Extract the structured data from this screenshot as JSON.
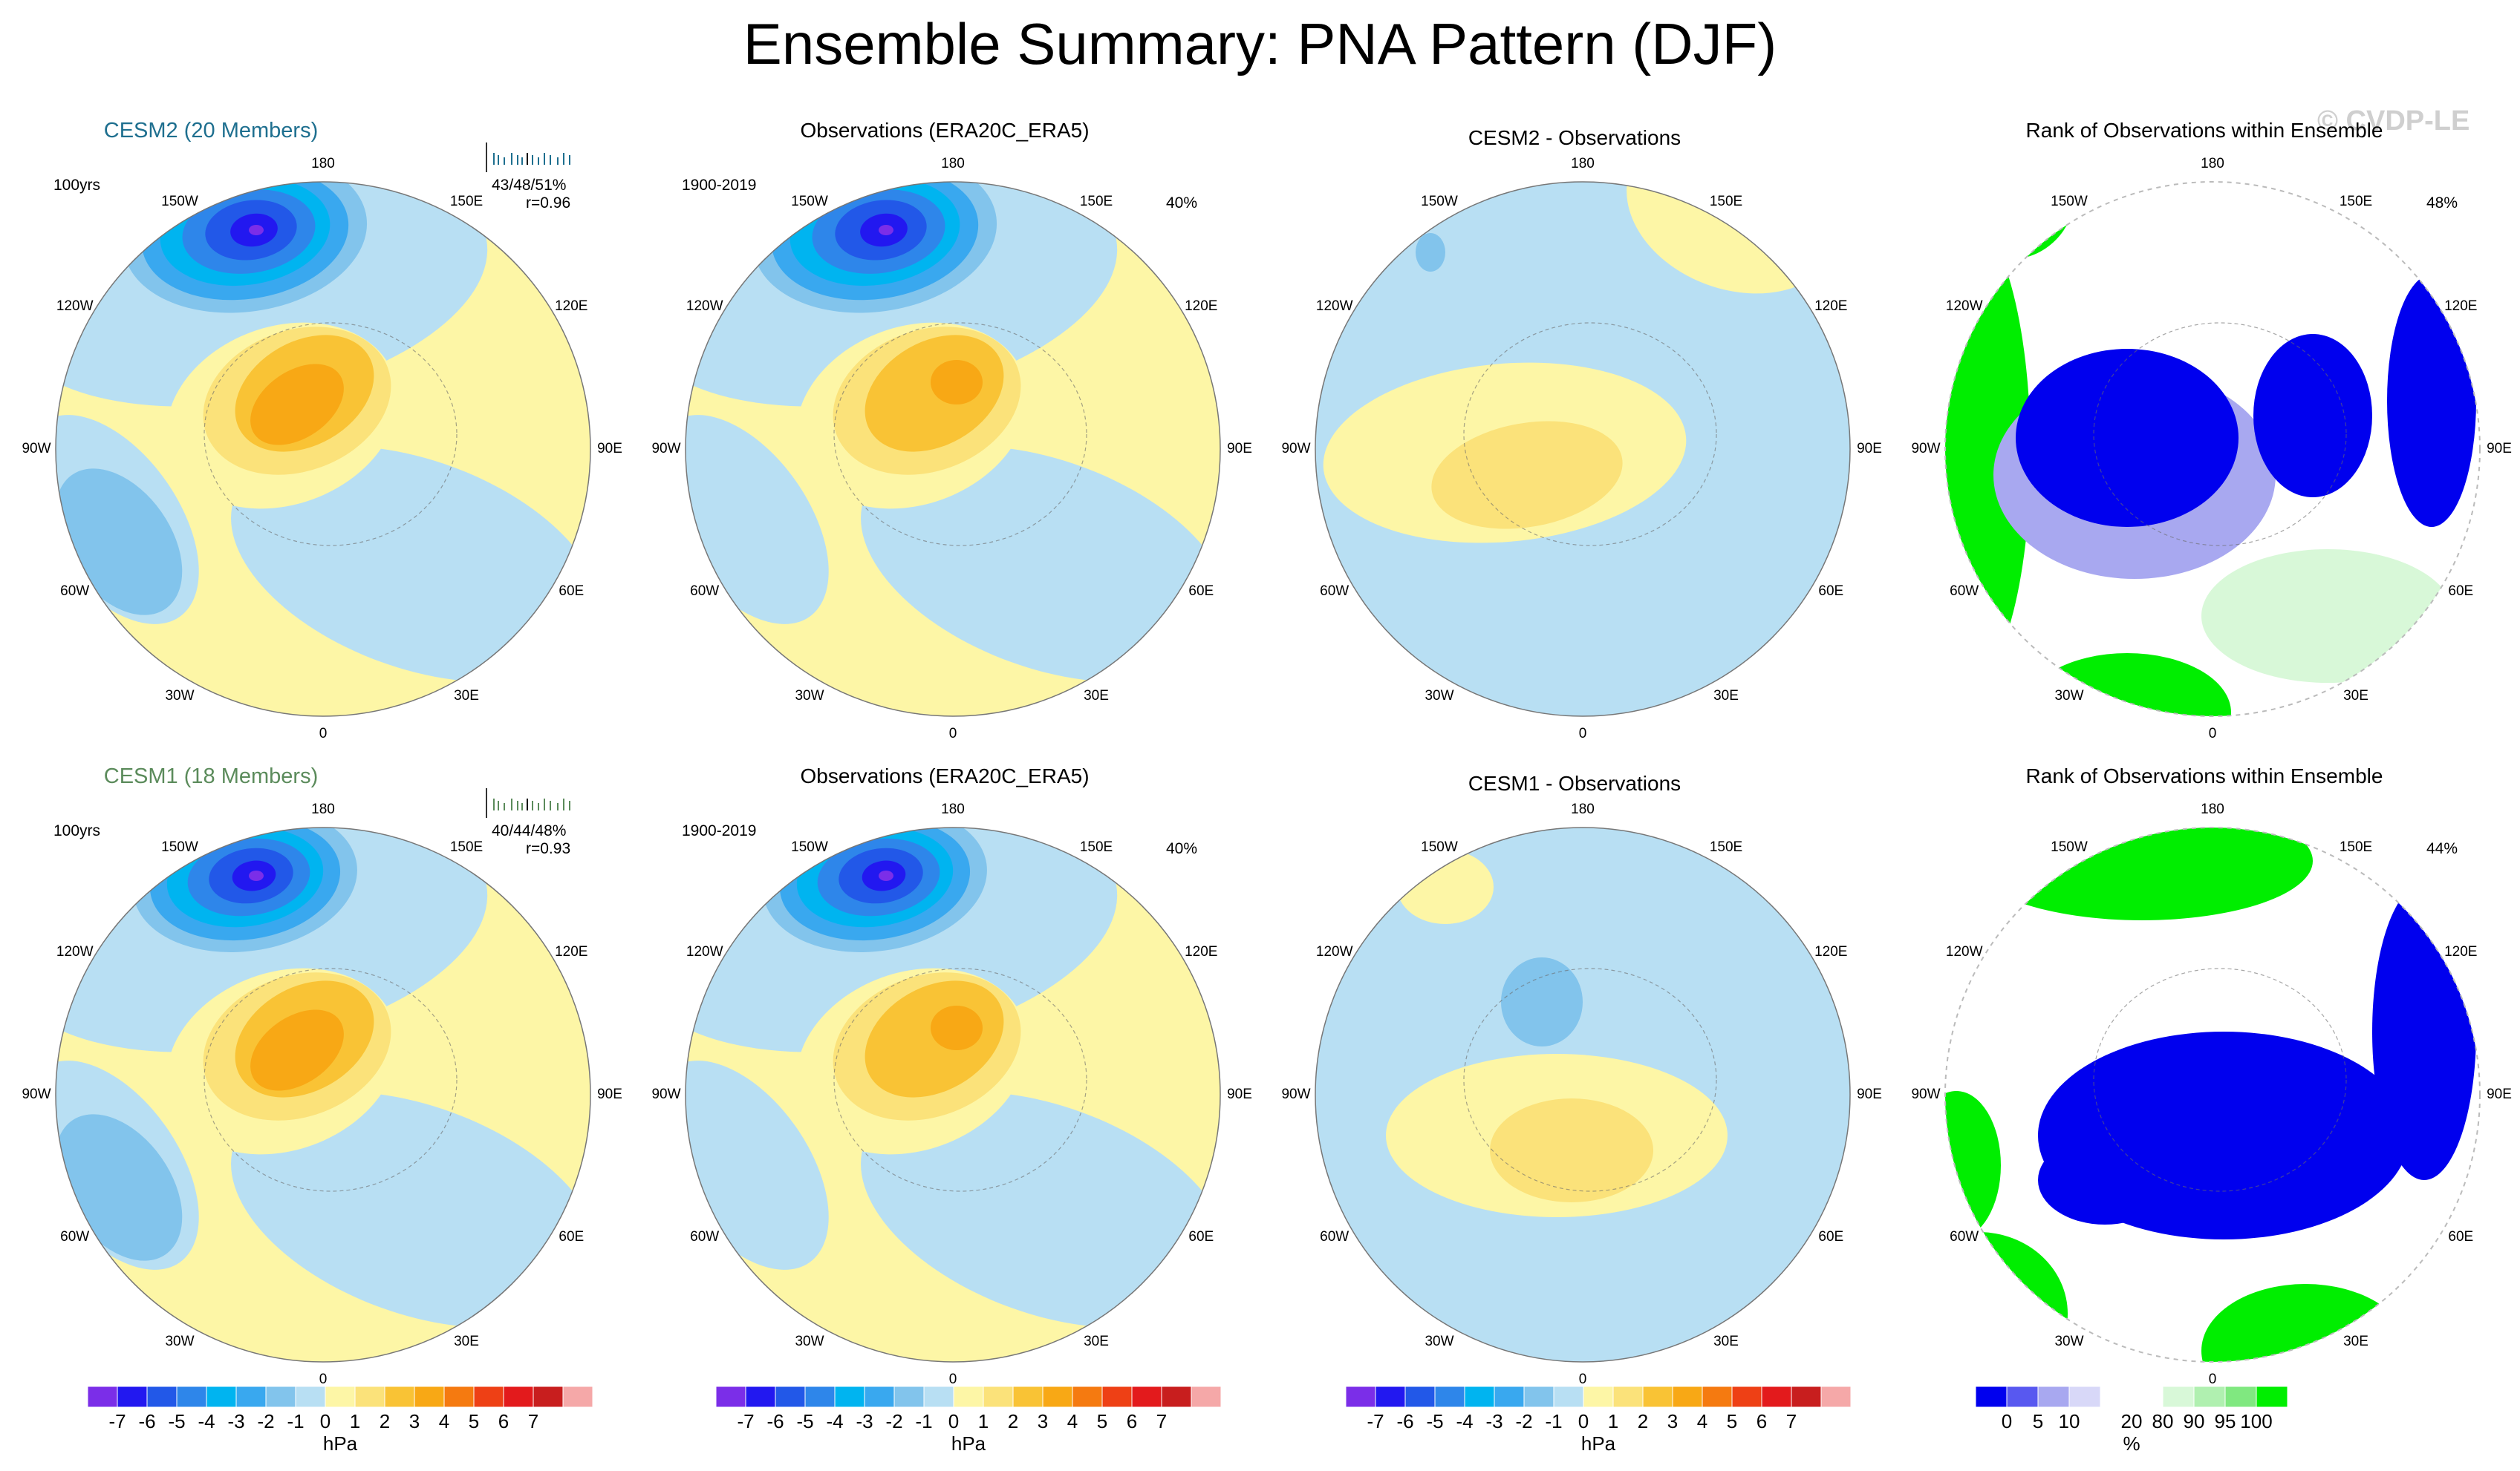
{
  "title": "Ensemble Summary: PNA Pattern (DJF)",
  "watermark": "© CVDP-LE",
  "colors": {
    "model1": "#1e6f8f",
    "model2": "#5b8b5b",
    "neg1": "#b8dff3",
    "neg2": "#82c4ec",
    "neg3": "#39a8ef",
    "neg4": "#00b4f0",
    "neg5": "#2e86ea",
    "neg6": "#2258e8",
    "neg7": "#2218f0",
    "neg8": "#7b2ee8",
    "pos1": "#fdf6a6",
    "pos2": "#fbe27a",
    "pos3": "#f9c335",
    "pos4": "#f8a815",
    "rank_low": "#0000ee",
    "rank_mid": "#a8a8f0",
    "rank_high": "#00ee00",
    "rank_pale": "#d8f8d8"
  },
  "lon_labels": [
    "180",
    "150E",
    "120E",
    "90E",
    "60E",
    "30E",
    "0",
    "30W",
    "60W",
    "90W",
    "120W",
    "150W"
  ],
  "panels": [
    {
      "title": "CESM2 (20 Members)",
      "kind": "model",
      "period": "100yrs",
      "stats": "43/48/51%",
      "r": "r=0.96"
    },
    {
      "title": "Observations (ERA20C_ERA5)",
      "kind": "obs",
      "period": "1900-2019",
      "pct": "40%"
    },
    {
      "title": "CESM2 - Observations",
      "kind": "diff"
    },
    {
      "title": "Rank of Observations within Ensemble",
      "kind": "rank",
      "pct": "48%"
    },
    {
      "title": "CESM1 (18 Members)",
      "kind": "model",
      "period": "100yrs",
      "stats": "40/44/48%",
      "r": "r=0.93"
    },
    {
      "title": "Observations (ERA20C_ERA5)",
      "kind": "obs",
      "period": "1900-2019",
      "pct": "40%"
    },
    {
      "title": "CESM1 - Observations",
      "kind": "diff"
    },
    {
      "title": "Rank of Observations within Ensemble",
      "kind": "rank",
      "pct": "44%"
    }
  ],
  "colorbars": {
    "hpa": {
      "ticks": [
        "-7",
        "-6",
        "-5",
        "-4",
        "-3",
        "-2",
        "-1",
        "0",
        "1",
        "2",
        "3",
        "4",
        "5",
        "6",
        "7"
      ],
      "unit": "hPa"
    },
    "rank": {
      "ticks": [
        "0",
        "5",
        "10",
        "20",
        "80",
        "90",
        "95",
        "100"
      ],
      "unit": "%"
    }
  },
  "chart_data": [
    {
      "type": "heatmap",
      "title": "CESM2 (20 Members)",
      "projection": "polar stereographic, Northern Hemisphere",
      "variable": "PNA pattern regression (DJF)",
      "units": "hPa",
      "color_levels": [
        -7,
        -6,
        -5,
        -4,
        -3,
        -2,
        -1,
        0,
        1,
        2,
        3,
        4,
        5,
        6,
        7
      ],
      "features": [
        {
          "name": "North Pacific low",
          "min_hPa": -7
        },
        {
          "name": "North America high",
          "max_hPa": 3
        },
        {
          "name": "North Atlantic negative",
          "min_hPa": -2
        }
      ],
      "period": "100yrs",
      "stats": "43/48/51%",
      "pattern_correlation": 0.96
    },
    {
      "type": "heatmap",
      "title": "Observations (ERA20C_ERA5)",
      "variable": "PNA pattern regression (DJF)",
      "units": "hPa",
      "features": [
        {
          "name": "North Pacific low",
          "min_hPa": -7
        },
        {
          "name": "North America high",
          "max_hPa": 3
        }
      ],
      "period": "1900-2019",
      "pct_variance": 40
    },
    {
      "type": "heatmap",
      "title": "CESM2 - Observations",
      "units": "hPa",
      "features": [
        {
          "name": "Arctic/North America positive",
          "max_hPa": 2
        },
        {
          "name": "Pacific small negative",
          "min_hPa": -2
        }
      ]
    },
    {
      "type": "heatmap",
      "title": "Rank of Observations within Ensemble",
      "units": "%",
      "color_levels": [
        0,
        5,
        10,
        20,
        80,
        90,
        95,
        100
      ],
      "pct": 48
    },
    {
      "type": "heatmap",
      "title": "CESM1 (18 Members)",
      "units": "hPa",
      "features": [
        {
          "name": "North Pacific low",
          "min_hPa": -6
        },
        {
          "name": "North America high",
          "max_hPa": 3
        },
        {
          "name": "North Atlantic negative",
          "min_hPa": -2
        }
      ],
      "period": "100yrs",
      "stats": "40/44/48%",
      "pattern_correlation": 0.93
    },
    {
      "type": "heatmap",
      "title": "Observations (ERA20C_ERA5)",
      "units": "hPa",
      "features": [
        {
          "name": "North Pacific low",
          "min_hPa": -7
        },
        {
          "name": "North America high",
          "max_hPa": 3
        }
      ],
      "period": "1900-2019",
      "pct_variance": 40
    },
    {
      "type": "heatmap",
      "title": "CESM1 - Observations",
      "units": "hPa",
      "features": [
        {
          "name": "Siberia negative",
          "min_hPa": -2
        },
        {
          "name": "Atlantic/Europe positive",
          "max_hPa": 2
        }
      ]
    },
    {
      "type": "heatmap",
      "title": "Rank of Observations within Ensemble",
      "units": "%",
      "color_levels": [
        0,
        5,
        10,
        20,
        80,
        90,
        95,
        100
      ],
      "pct": 44
    }
  ]
}
